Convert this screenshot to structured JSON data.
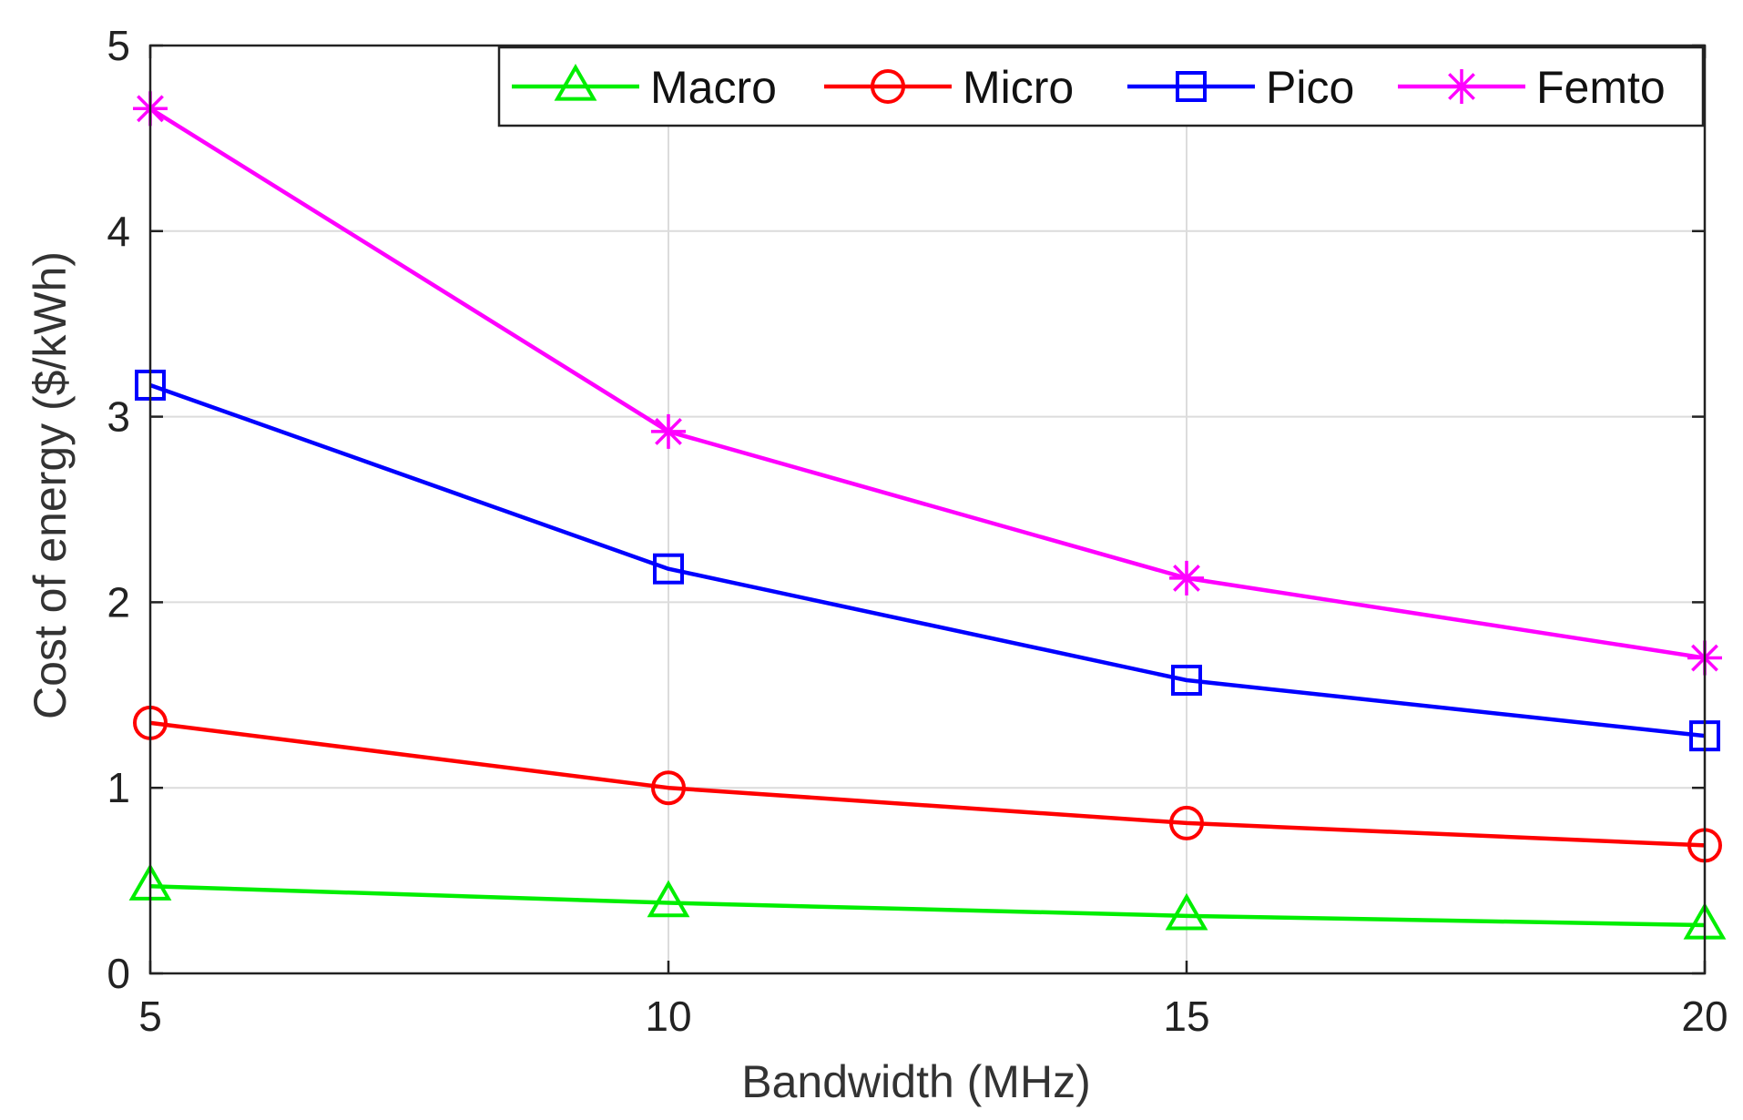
{
  "chart_data": {
    "type": "line",
    "title": "",
    "xlabel": "Bandwidth (MHz)",
    "ylabel": "Cost of energy ($/kWh)",
    "x": [
      5,
      10,
      15,
      20
    ],
    "xlim": [
      5,
      20
    ],
    "ylim": [
      0,
      5
    ],
    "xticks": [
      "5",
      "10",
      "15",
      "20"
    ],
    "yticks": [
      "0",
      "1",
      "2",
      "3",
      "4",
      "5"
    ],
    "grid": true,
    "legend_position": "top-right",
    "series": [
      {
        "name": "Macro",
        "color": "#00ee00",
        "marker": "triangle",
        "values": [
          0.47,
          0.38,
          0.31,
          0.26
        ]
      },
      {
        "name": "Micro",
        "color": "#ff0000",
        "marker": "circle",
        "values": [
          1.35,
          1.0,
          0.81,
          0.69
        ]
      },
      {
        "name": "Pico",
        "color": "#0000ff",
        "marker": "square",
        "values": [
          3.17,
          2.18,
          1.58,
          1.28
        ]
      },
      {
        "name": "Femto",
        "color": "#ff00ff",
        "marker": "asterisk",
        "values": [
          4.66,
          2.92,
          2.13,
          1.7
        ]
      }
    ]
  }
}
